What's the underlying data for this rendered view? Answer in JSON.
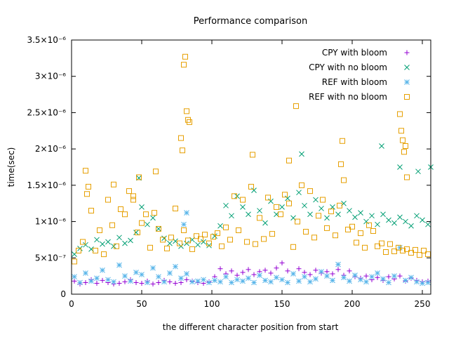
{
  "chart_data": {
    "type": "scatter",
    "title": "Performance comparison",
    "xlabel": "the different character position from start",
    "ylabel": "time(sec)",
    "xlim": [
      0,
      256
    ],
    "ylim": [
      0,
      3.5e-06
    ],
    "xticks": [
      0,
      50,
      100,
      150,
      200,
      250
    ],
    "xtick_labels": [
      "0",
      "50",
      "100",
      "150",
      "200",
      "250"
    ],
    "yticks": [
      0,
      5e-07,
      1e-06,
      1.5e-06,
      2e-06,
      2.5e-06,
      3e-06,
      3.5e-06
    ],
    "ytick_labels": [
      "0",
      "5×10⁻⁷",
      "1×10⁻⁶",
      "1.5×10⁻⁶",
      "2×10⁻⁶",
      "2.5×10⁻⁶",
      "3×10⁻⁶",
      "3.5×10⁻⁶"
    ],
    "grid": false,
    "legend_position": "top-right",
    "series": [
      {
        "name": "CPY with bloom",
        "marker": "plus",
        "color": "#9400d3",
        "x": [
          2,
          6,
          10,
          14,
          18,
          22,
          26,
          30,
          34,
          38,
          42,
          46,
          50,
          54,
          58,
          62,
          66,
          70,
          74,
          78,
          82,
          86,
          90,
          94,
          98,
          102,
          106,
          110,
          114,
          118,
          122,
          126,
          130,
          134,
          138,
          142,
          146,
          150,
          154,
          158,
          162,
          166,
          170,
          174,
          178,
          182,
          186,
          190,
          194,
          198,
          202,
          206,
          210,
          214,
          218,
          222,
          226,
          230,
          234,
          238,
          242,
          246,
          250,
          254
        ],
        "y": [
          1.8e-07,
          1.4e-07,
          1.6e-07,
          2e-07,
          1.5e-07,
          1.9e-07,
          1.6e-07,
          1.4e-07,
          1.5e-07,
          1.7e-07,
          2e-07,
          1.6e-07,
          1.5e-07,
          1.8e-07,
          1.4e-07,
          1.6e-07,
          1.9e-07,
          1.7e-07,
          1.5e-07,
          1.6e-07,
          2e-07,
          1.8e-07,
          1.6e-07,
          1.5e-07,
          1.7e-07,
          2.4e-07,
          3.5e-07,
          2.8e-07,
          3.2e-07,
          2.6e-07,
          3e-07,
          3.4e-07,
          2.7e-07,
          3.1e-07,
          3.3e-07,
          2.9e-07,
          3.6e-07,
          4.3e-07,
          3.2e-07,
          2.8e-07,
          3.5e-07,
          3e-07,
          2.7e-07,
          3.3e-07,
          2.9e-07,
          3.1e-07,
          2.8e-07,
          3.4e-07,
          2.6e-07,
          3.2e-07,
          2.4e-07,
          2.2e-07,
          2.5e-07,
          2e-07,
          2.3e-07,
          1.9e-07,
          2.4e-07,
          2.1e-07,
          2.5e-07,
          1.8e-07,
          2.2e-07,
          1.9e-07,
          1.7e-07,
          1.8e-07
        ]
      },
      {
        "name": "CPY with no bloom",
        "marker": "cross",
        "color": "#009e73",
        "x": [
          2,
          6,
          10,
          14,
          18,
          22,
          26,
          30,
          34,
          38,
          42,
          46,
          50,
          54,
          58,
          62,
          66,
          70,
          74,
          78,
          82,
          86,
          90,
          94,
          98,
          102,
          106,
          110,
          114,
          118,
          122,
          126,
          130,
          134,
          138,
          142,
          146,
          150,
          154,
          158,
          162,
          166,
          170,
          174,
          178,
          182,
          186,
          190,
          194,
          198,
          202,
          206,
          210,
          214,
          218,
          222,
          226,
          230,
          234,
          238,
          242,
          246,
          250,
          254,
          48,
          164,
          221,
          234,
          247,
          256
        ],
        "y": [
          5.5e-07,
          6.3e-07,
          6.8e-07,
          6.2e-07,
          7.5e-07,
          6.9e-07,
          7.2e-07,
          6.6e-07,
          7.8e-07,
          7e-07,
          7.4e-07,
          8.5e-07,
          1.2e-06,
          9.6e-07,
          1.05e-06,
          9e-07,
          7.7e-07,
          7e-07,
          7.3e-07,
          6.6e-07,
          7e-07,
          7.5e-07,
          6.8e-07,
          7.2e-07,
          6.7e-07,
          8e-07,
          9.4e-07,
          1.22e-06,
          1.08e-06,
          1.35e-06,
          1.2e-06,
          1.1e-06,
          1.43e-06,
          1.15e-06,
          9.8e-07,
          1.28e-06,
          1.1e-06,
          1.2e-06,
          1.32e-06,
          1.05e-06,
          1.4e-06,
          1.22e-06,
          1.1e-06,
          1.3e-06,
          1.18e-06,
          1.05e-06,
          1.2e-06,
          1.1e-06,
          1.25e-06,
          1.15e-06,
          1.06e-06,
          1.12e-06,
          1e-06,
          1.08e-06,
          9.6e-07,
          1.1e-06,
          1.02e-06,
          9.8e-07,
          1.06e-06,
          1e-06,
          9.4e-07,
          1.08e-06,
          1.02e-06,
          9.6e-07,
          1.6e-06,
          1.93e-06,
          2.04e-06,
          1.75e-06,
          1.69e-06,
          1.75e-06
        ]
      },
      {
        "name": "REF with bloom",
        "marker": "star",
        "color": "#56b4e9",
        "x": [
          2,
          6,
          10,
          14,
          18,
          22,
          26,
          30,
          34,
          38,
          42,
          46,
          50,
          54,
          58,
          62,
          66,
          70,
          74,
          78,
          82,
          86,
          90,
          94,
          98,
          102,
          106,
          110,
          114,
          118,
          122,
          126,
          130,
          134,
          138,
          142,
          146,
          150,
          154,
          158,
          162,
          166,
          170,
          174,
          178,
          182,
          186,
          190,
          194,
          198,
          202,
          206,
          210,
          214,
          218,
          222,
          226,
          230,
          234,
          238,
          242,
          246,
          250,
          254,
          80,
          82
        ],
        "y": [
          2.4e-07,
          1.6e-07,
          2.9e-07,
          1.8e-07,
          2.2e-07,
          3.3e-07,
          2e-07,
          1.7e-07,
          4e-07,
          2.5e-07,
          1.8e-07,
          3e-07,
          2.7e-07,
          1.6e-07,
          3.6e-07,
          2.4e-07,
          1.7e-07,
          2.9e-07,
          3.8e-07,
          2.2e-07,
          2.8e-07,
          1.7e-07,
          1.8e-07,
          2e-07,
          1.6e-07,
          1.9e-07,
          1.7e-07,
          2.4e-07,
          1.6e-07,
          2e-07,
          1.8e-07,
          2.2e-07,
          1.6e-07,
          2.6e-07,
          1.9e-07,
          1.7e-07,
          2.3e-07,
          2e-07,
          1.6e-07,
          2.8e-07,
          1.8e-07,
          2.4e-07,
          1.7e-07,
          2.1e-07,
          3.1e-07,
          2.5e-07,
          1.9e-07,
          4.1e-07,
          2.3e-07,
          1.8e-07,
          2.6e-07,
          2e-07,
          1.7e-07,
          2.4e-07,
          2.9e-07,
          2.1e-07,
          1.6e-07,
          2.5e-07,
          6.4e-07,
          1.9e-07,
          2.3e-07,
          1.7e-07,
          1.5e-07,
          1.6e-07,
          9.6e-07,
          1.12e-06
        ]
      },
      {
        "name": "REF with no bloom",
        "marker": "square",
        "color": "#e69f00",
        "x": [
          2,
          5,
          8,
          11,
          14,
          17,
          20,
          23,
          26,
          29,
          32,
          35,
          38,
          41,
          44,
          47,
          50,
          53,
          56,
          59,
          62,
          65,
          68,
          71,
          74,
          77,
          80,
          83,
          86,
          89,
          92,
          95,
          98,
          101,
          104,
          107,
          110,
          113,
          116,
          119,
          122,
          125,
          128,
          131,
          134,
          137,
          140,
          143,
          146,
          149,
          152,
          155,
          158,
          161,
          164,
          167,
          170,
          173,
          176,
          179,
          182,
          185,
          188,
          191,
          194,
          197,
          200,
          203,
          206,
          209,
          212,
          215,
          218,
          221,
          224,
          227,
          230,
          233,
          236,
          239,
          242,
          245,
          248,
          251,
          254,
          80,
          81,
          82,
          83,
          84,
          78,
          79,
          10,
          12,
          30,
          44,
          48,
          60,
          129,
          155,
          160,
          192,
          193,
          234,
          235,
          236,
          237,
          238,
          239
        ],
        "y": [
          4.5e-07,
          6e-07,
          7.2e-07,
          1.38e-06,
          1.15e-06,
          6e-07,
          8.8e-07,
          5.5e-07,
          1.3e-06,
          9.5e-07,
          6.6e-07,
          1.17e-06,
          1.1e-06,
          1.42e-06,
          1.3e-06,
          8.5e-07,
          9.8e-07,
          1.1e-06,
          6.4e-07,
          1.12e-06,
          9e-07,
          7.5e-07,
          6.3e-07,
          7.8e-07,
          1.18e-06,
          7e-07,
          8.8e-07,
          7.4e-07,
          6.2e-07,
          8e-07,
          7.6e-07,
          8.2e-07,
          7e-07,
          7.9e-07,
          8.4e-07,
          6.6e-07,
          9.2e-07,
          7.5e-07,
          1.35e-06,
          8.8e-07,
          1.3e-06,
          7.2e-07,
          1.48e-06,
          6.9e-07,
          1.05e-06,
          7.6e-07,
          1.33e-06,
          8.3e-07,
          1.2e-06,
          1.1e-06,
          1.37e-06,
          1.25e-06,
          6.5e-07,
          1e-06,
          1.5e-06,
          8.6e-07,
          1.42e-06,
          7.8e-07,
          1.08e-06,
          1.3e-06,
          9.1e-07,
          1.14e-06,
          8.1e-07,
          1.22e-06,
          1.57e-06,
          8.9e-07,
          9.3e-07,
          7.1e-07,
          8.4e-07,
          6.4e-07,
          9.5e-07,
          8.7e-07,
          6.6e-07,
          7e-07,
          5.8e-07,
          6.9e-07,
          5.9e-07,
          6.4e-07,
          6e-07,
          6.2e-07,
          5.7e-07,
          6.1e-07,
          5.4e-07,
          6e-07,
          5.5e-07,
          3.16e-06,
          3.27e-06,
          2.52e-06,
          2.4e-06,
          2.37e-06,
          2.15e-06,
          1.98e-06,
          1.7e-06,
          1.48e-06,
          1.51e-06,
          1.35e-06,
          1.61e-06,
          1.69e-06,
          1.92e-06,
          1.84e-06,
          2.59e-06,
          1.79e-06,
          2.11e-06,
          2.48e-06,
          2.25e-06,
          2.12e-06,
          1.96e-06,
          2.04e-06,
          1.61e-06
        ]
      }
    ]
  }
}
